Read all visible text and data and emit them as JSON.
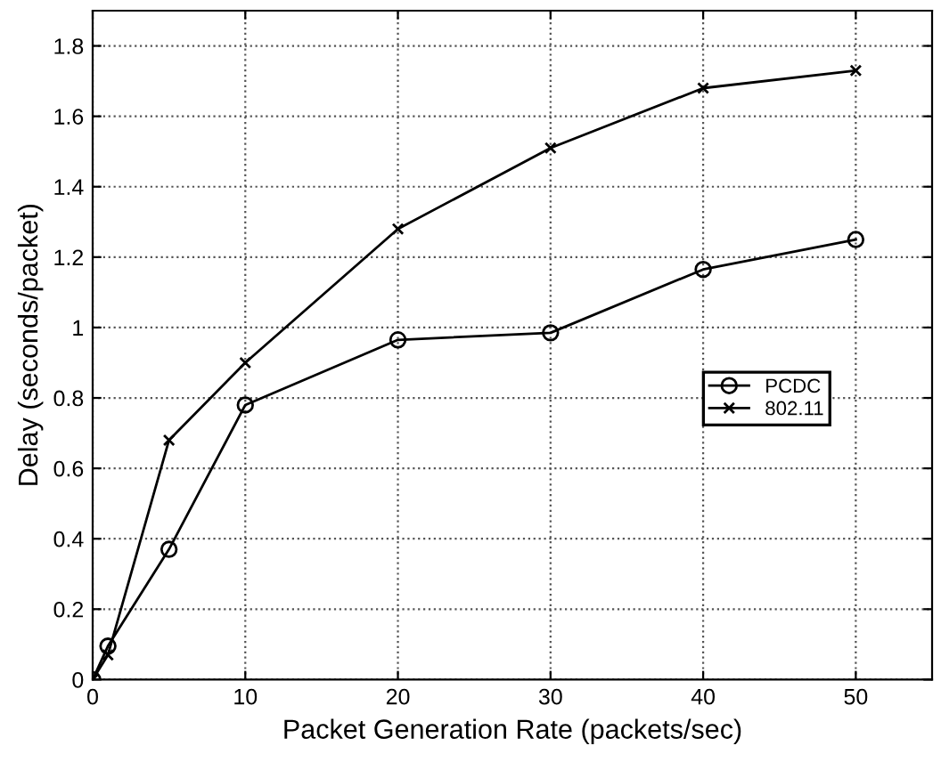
{
  "chart_data": {
    "type": "line",
    "xlabel": "Packet Generation Rate (packets/sec)",
    "ylabel": "Delay (seconds/packet)",
    "x": [
      0,
      1,
      5,
      10,
      20,
      30,
      40,
      50
    ],
    "series": [
      {
        "name": "PCDC",
        "color": "#000000",
        "marker": "circle",
        "values": [
          0,
          0.095,
          0.37,
          0.78,
          0.965,
          0.985,
          1.165,
          1.25
        ]
      },
      {
        "name": "802.11",
        "color": "#000000",
        "marker": "cross",
        "values": [
          0,
          0.07,
          0.68,
          0.9,
          1.28,
          1.51,
          1.68,
          1.73
        ]
      }
    ],
    "xlim": [
      0,
      55
    ],
    "xticks": [
      0,
      10,
      20,
      30,
      40,
      50
    ],
    "ylim": [
      0,
      1.9
    ],
    "yticks": [
      0,
      0.2,
      0.4,
      0.6,
      0.8,
      1,
      1.2,
      1.4,
      1.6,
      1.8
    ],
    "grid": true,
    "legend": "right",
    "line_style": "solid"
  }
}
